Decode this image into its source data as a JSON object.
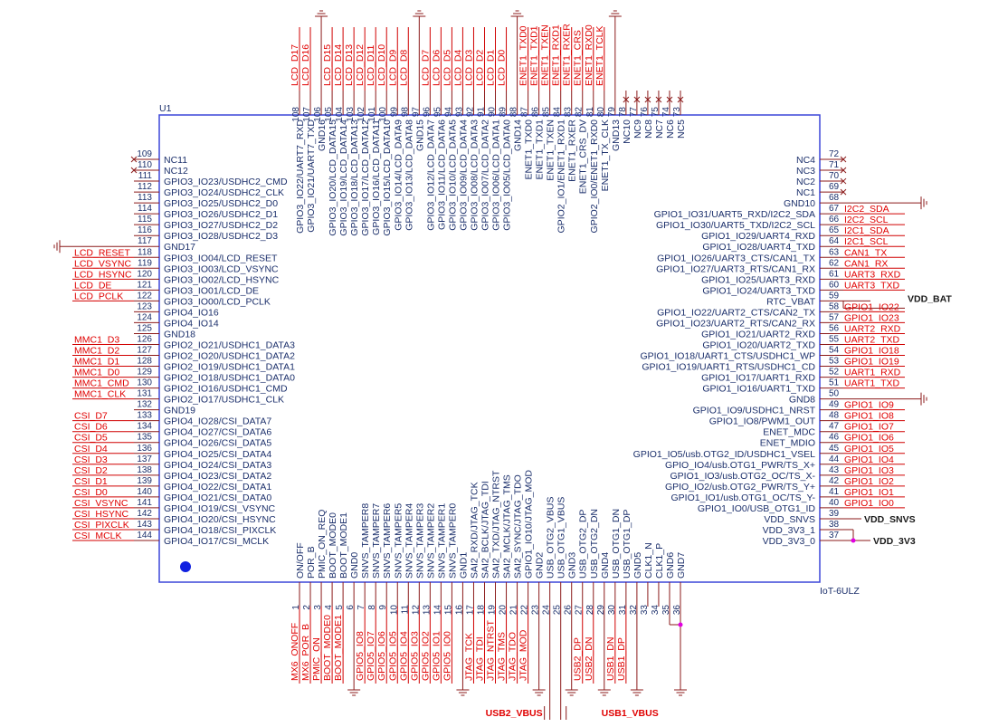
{
  "part": {
    "ref": "U1",
    "name": "IoT-6ULZ"
  },
  "left": [
    {
      "n": 109,
      "name": "NC11",
      "nc": true
    },
    {
      "n": 110,
      "name": "NC12",
      "nc": true
    },
    {
      "n": 111,
      "name": "GPIO3_IO23/USDHC2_CMD"
    },
    {
      "n": 112,
      "name": "GPIO3_IO24/USDHC2_CLK"
    },
    {
      "n": 113,
      "name": "GPIO3_IO25/USDHC2_D0"
    },
    {
      "n": 114,
      "name": "GPIO3_IO26/USDHC2_D1"
    },
    {
      "n": 115,
      "name": "GPIO3_IO27/USDHC2_D2"
    },
    {
      "n": 116,
      "name": "GPIO3_IO28/USDHC2_D3"
    },
    {
      "n": 117,
      "name": "GND17",
      "gnd": true
    },
    {
      "n": 118,
      "name": "GPIO3_IO04/LCD_RESET",
      "net": "LCD_RESET"
    },
    {
      "n": 119,
      "name": "GPIO3_IO03/LCD_VSYNC",
      "net": "LCD_VSYNC"
    },
    {
      "n": 120,
      "name": "GPIO3_IO02/LCD_HSYNC",
      "net": "LCD_HSYNC"
    },
    {
      "n": 121,
      "name": "GPIO3_IO01/LCD_DE",
      "net": "LCD_DE"
    },
    {
      "n": 122,
      "name": "GPIO3_IO00/LCD_PCLK",
      "net": "LCD_PCLK"
    },
    {
      "n": 123,
      "name": "GPIO4_IO16"
    },
    {
      "n": 124,
      "name": "GPIO4_IO14"
    },
    {
      "n": 125,
      "name": "GND18"
    },
    {
      "n": 126,
      "name": "GPIO2_IO21/USDHC1_DATA3",
      "net": "MMC1_D3"
    },
    {
      "n": 127,
      "name": "GPIO2_IO20/USDHC1_DATA2",
      "net": "MMC1_D2"
    },
    {
      "n": 128,
      "name": "GPIO2_IO19/USDHC1_DATA1",
      "net": "MMC1_D1"
    },
    {
      "n": 129,
      "name": "GPIO2_IO18/USDHC1_DATA0",
      "net": "MMC1_D0"
    },
    {
      "n": 130,
      "name": "GPIO2_IO16/USDHC1_CMD",
      "net": "MMC1_CMD"
    },
    {
      "n": 131,
      "name": "GPIO2_IO17/USDHC1_CLK",
      "net": "MMC1_CLK"
    },
    {
      "n": 132,
      "name": "GND19"
    },
    {
      "n": 133,
      "name": "GPIO4_IO28/CSI_DATA7",
      "net": "CSI_D7"
    },
    {
      "n": 134,
      "name": "GPIO4_IO27/CSI_DATA6",
      "net": "CSI_D6"
    },
    {
      "n": 135,
      "name": "GPIO4_IO26/CSI_DATA5",
      "net": "CSI_D5"
    },
    {
      "n": 136,
      "name": "GPIO4_IO25/CSI_DATA4",
      "net": "CSI_D4"
    },
    {
      "n": 137,
      "name": "GPIO4_IO24/CSI_DATA3",
      "net": "CSI_D3"
    },
    {
      "n": 138,
      "name": "GPIO4_IO23/CSI_DATA2",
      "net": "CSI_D2"
    },
    {
      "n": 139,
      "name": "GPIO4_IO22/CSI_DATA1",
      "net": "CSI_D1"
    },
    {
      "n": 140,
      "name": "GPIO4_IO21/CSI_DATA0",
      "net": "CSI_D0"
    },
    {
      "n": 141,
      "name": "GPIO4_IO19/CSI_VSYNC",
      "net": "CSI_VSYNC"
    },
    {
      "n": 142,
      "name": "GPIO4_IO20/CSI_HSYNC",
      "net": "CSI_HSYNC"
    },
    {
      "n": 143,
      "name": "GPIO4_IO18/CSI_PIXCLK",
      "net": "CSI_PIXCLK"
    },
    {
      "n": 144,
      "name": "GPIO4_IO17/CSI_MCLK",
      "net": "CSI_MCLK"
    }
  ],
  "top": [
    {
      "n": 108,
      "name": "GPIO3_IO22/UART7_RXD",
      "net": "LCD_D17"
    },
    {
      "n": 107,
      "name": "GPIO3_IO21/UART7_TXD",
      "net": "LCD_D16"
    },
    {
      "n": 106,
      "name": "GND16",
      "gnd": true
    },
    {
      "n": 105,
      "name": "GPIO3_IO20/LCD_DATA15",
      "net": "LCD_D15"
    },
    {
      "n": 104,
      "name": "GPIO3_IO19/LCD_DATA14",
      "net": "LCD_D14"
    },
    {
      "n": 103,
      "name": "GPIO3_IO18/LCD_DATA13",
      "net": "LCD_D13"
    },
    {
      "n": 102,
      "name": "GPIO3_IO17/LCD_DATA12",
      "net": "LCD_D12"
    },
    {
      "n": 101,
      "name": "GPIO3_IO16/LCD_DATA11",
      "net": "LCD_D11"
    },
    {
      "n": 100,
      "name": "GPIO3_IO15/LCD_DATA10",
      "net": "LCD_D10"
    },
    {
      "n": 99,
      "name": "GPIO3_IO14/LCD_DATA9",
      "net": "LCD_D9"
    },
    {
      "n": 98,
      "name": "GPIO3_IO13/LCD_DATA8",
      "net": "LCD_D8"
    },
    {
      "n": 97,
      "name": "GND15",
      "gnd": true
    },
    {
      "n": 96,
      "name": "GPIO3_IO12/LCD_DATA7",
      "net": "LCD_D7"
    },
    {
      "n": 95,
      "name": "GPIO3_IO11/LCD_DATA6",
      "net": "LCD_D6"
    },
    {
      "n": 94,
      "name": "GPIO3_IO10/LCD_DATA5",
      "net": "LCD_D5"
    },
    {
      "n": 93,
      "name": "GPIO3_IO09/LCD_DATA4",
      "net": "LCD_D4"
    },
    {
      "n": 92,
      "name": "GPIO3_IO08/LCD_DATA3",
      "net": "LCD_D3"
    },
    {
      "n": 91,
      "name": "GPIO3_IO07/LCD_DATA2",
      "net": "LCD_D2"
    },
    {
      "n": 90,
      "name": "GPIO3_IO06/LCD_DATA1",
      "net": "LCD_D1"
    },
    {
      "n": 89,
      "name": "GPIO3_IO05/LCD_DATA0",
      "net": "LCD_D0"
    },
    {
      "n": 88,
      "name": "GND14",
      "gnd": true
    },
    {
      "n": 87,
      "name": "ENET1_TXD0",
      "net": "ENET1_TXD0"
    },
    {
      "n": 86,
      "name": "ENET1_TXD1",
      "net": "ENET1_TXD1"
    },
    {
      "n": 85,
      "name": "ENET1_TXEN",
      "net": "ENET1_TXEN"
    },
    {
      "n": 84,
      "name": "GPIO2_IO1/ENET1_RXD1",
      "net": "ENET1_RXD1"
    },
    {
      "n": 83,
      "name": "ENET1_RXER",
      "net": "ENET1_RXER"
    },
    {
      "n": 82,
      "name": "ENET1_CRS_DV",
      "net": "ENET1_CRS"
    },
    {
      "n": 81,
      "name": "GPIO2_IO0/ENET1_RXD0",
      "net": "ENET1_RXD0"
    },
    {
      "n": 80,
      "name": "ENET1_TX_CLK",
      "net": "ENET1_TCLK"
    },
    {
      "n": 79,
      "name": "GND13",
      "gnd": true
    },
    {
      "n": 78,
      "name": "NC10",
      "nc": true
    },
    {
      "n": 77,
      "name": "NC9",
      "nc": true
    },
    {
      "n": 76,
      "name": "NC8",
      "nc": true
    },
    {
      "n": 75,
      "name": "NC7",
      "nc": true
    },
    {
      "n": 74,
      "name": "NC6",
      "nc": true
    },
    {
      "n": 73,
      "name": "NC5",
      "nc": true
    }
  ],
  "right": [
    {
      "n": 72,
      "name": "NC4",
      "nc": true
    },
    {
      "n": 71,
      "name": "NC3",
      "nc": true
    },
    {
      "n": 70,
      "name": "NC2",
      "nc": true
    },
    {
      "n": 69,
      "name": "NC1",
      "nc": true
    },
    {
      "n": 68,
      "name": "GND10",
      "gnd": true
    },
    {
      "n": 67,
      "name": "GPIO1_IO31/UART5_RXD/I2C2_SDA",
      "net": "I2C2_SDA"
    },
    {
      "n": 66,
      "name": "GPIO1_IO30/UART5_TXD/I2C2_SCL",
      "net": "I2C2_SCL"
    },
    {
      "n": 65,
      "name": "GPIO1_IO29/UART4_RXD",
      "net": "I2C1_SDA"
    },
    {
      "n": 64,
      "name": "GPIO1_IO28/UART4_TXD",
      "net": "I2C1_SCL"
    },
    {
      "n": 63,
      "name": "GPIO1_IO26/UART3_CTS/CAN1_TX",
      "net": "CAN1_TX"
    },
    {
      "n": 62,
      "name": "GPIO1_IO27/UART3_RTS/CAN1_RX",
      "net": "CAN1_RX"
    },
    {
      "n": 61,
      "name": "GPIO1_IO25/UART3_RXD",
      "net": "UART3_RXD"
    },
    {
      "n": 60,
      "name": "GPIO1_IO24/UART3_TXD",
      "net": "UART3_TXD"
    },
    {
      "n": 59,
      "name": "RTC_VBAT",
      "net": "VDD_BAT",
      "power": true
    },
    {
      "n": 58,
      "name": "GPIO1_IO22/UART2_CTS/CAN2_TX",
      "net": "GPIO1_IO22"
    },
    {
      "n": 57,
      "name": "GPIO1_IO23/UART2_RTS/CAN2_RX",
      "net": "GPIO1_IO23"
    },
    {
      "n": 56,
      "name": "GPIO1_IO21/UART2_RXD",
      "net": "UART2_RXD"
    },
    {
      "n": 55,
      "name": "GPIO1_IO20/UART2_TXD",
      "net": "UART2_TXD"
    },
    {
      "n": 54,
      "name": "GPIO1_IO18/UART1_CTS/USDHC1_WP",
      "net": "GPIO1_IO18"
    },
    {
      "n": 53,
      "name": "GPIO1_IO19/UART1_RTS/USDHC1_CD",
      "net": "GPIO1_IO19"
    },
    {
      "n": 52,
      "name": "GPIO1_IO17/UART1_RXD",
      "net": "UART1_RXD"
    },
    {
      "n": 51,
      "name": "GPIO1_IO16/UART1_TXD",
      "net": "UART1_TXD"
    },
    {
      "n": 50,
      "name": "GND8",
      "gnd": true
    },
    {
      "n": 49,
      "name": "GPIO1_IO9/USDHC1_NRST",
      "net": "GPIO1_IO9"
    },
    {
      "n": 48,
      "name": "GPIO1_IO8/PWM1_OUT",
      "net": "GPIO1_IO8"
    },
    {
      "n": 47,
      "name": "ENET_MDC",
      "net": "GPIO1_IO7"
    },
    {
      "n": 46,
      "name": "ENET_MDIO",
      "net": "GPIO1_IO6"
    },
    {
      "n": 45,
      "name": "GPIO1_IO5/usb.OTG2_ID/USDHC1_VSEL",
      "net": "GPIO1_IO5"
    },
    {
      "n": 44,
      "name": "GPIO_IO4/usb.OTG1_PWR/TS_X+",
      "net": "GPIO1_IO4"
    },
    {
      "n": 43,
      "name": "GPIO1_IO3/usb.OTG2_OC/TS_X-",
      "net": "GPIO1_IO3"
    },
    {
      "n": 42,
      "name": "GPIO_IO2/usb.OTG2_PWR/TS_Y+",
      "net": "GPIO1_IO2"
    },
    {
      "n": 41,
      "name": "GPIO1_IO1/usb.OTG1_OC/TS_Y-",
      "net": "GPIO1_IO1"
    },
    {
      "n": 40,
      "name": "GPIO1_IO0/USB_OTG1_ID",
      "net": "GPIO1_IO0"
    },
    {
      "n": 39,
      "name": "VDD_SNVS",
      "net": "VDD_SNVS",
      "power": true
    },
    {
      "n": 38,
      "name": "VDD_3V3_1"
    },
    {
      "n": 37,
      "name": "VDD_3V3_0",
      "net": "VDD_3V3",
      "power": true
    }
  ],
  "bottom": [
    {
      "n": 1,
      "name": "ON/OFF",
      "net": "MX6_ONOFF"
    },
    {
      "n": 2,
      "name": "POR_B",
      "net": "MX6_POR_B"
    },
    {
      "n": 3,
      "name": "PMIC_ON_REQ",
      "net": "PMIC_ON"
    },
    {
      "n": 4,
      "name": "BOOT_MODE0",
      "net": "BOOT_MODE0"
    },
    {
      "n": 5,
      "name": "BOOT_MODE1",
      "net": "BOOT_MODE1"
    },
    {
      "n": 6,
      "name": "GND0",
      "gnd": true
    },
    {
      "n": 7,
      "name": "SNVS_TAMPER8",
      "net": "GPIO5_IO8"
    },
    {
      "n": 8,
      "name": "SNVS_TAMPER7",
      "net": "GPIO5_IO7"
    },
    {
      "n": 9,
      "name": "SNVS_TAMPER6",
      "net": "GPIO5_IO6"
    },
    {
      "n": 10,
      "name": "SNVS_TAMPER5",
      "net": "GPIO5_IO5"
    },
    {
      "n": 11,
      "name": "SNVS_TAMPER4",
      "net": "GPIO5_IO4"
    },
    {
      "n": 12,
      "name": "SNVS_TAMPER3",
      "net": "GPIO5_IO3"
    },
    {
      "n": 13,
      "name": "SNVS_TAMPER2",
      "net": "GPIO5_IO2"
    },
    {
      "n": 14,
      "name": "SNVS_TAMPER1",
      "net": "GPIO5_IO1"
    },
    {
      "n": 15,
      "name": "SNVS_TAMPER0",
      "net": "GPIO5_IO0"
    },
    {
      "n": 16,
      "name": "GND1",
      "gnd": true
    },
    {
      "n": 17,
      "name": "SAI2_RXD/JTAG_TCK",
      "net": "JTAG_TCK"
    },
    {
      "n": 18,
      "name": "SAI2_BCLK/JTAG_TDI",
      "net": "JTAG_TDI"
    },
    {
      "n": 19,
      "name": "SAI2_TXD/JTAG_NTRST",
      "net": "JTAG_NTRST"
    },
    {
      "n": 20,
      "name": "SAI2_MCLK/JTAG_TMS",
      "net": "JTAG_TMS"
    },
    {
      "n": 21,
      "name": "SAI2_SYNC/JTAG_TDO",
      "net": "JTAG_TDO"
    },
    {
      "n": 22,
      "name": "GPIO1_IO10/JTAG_MOD",
      "net": "JTAG_MOD"
    },
    {
      "n": 23,
      "name": "GND2",
      "gnd": true
    },
    {
      "n": 24,
      "name": "USB_OTG2_VBUS",
      "net": "USB2_VBUS",
      "power": true
    },
    {
      "n": 25,
      "name": "USB_OTG1_VBUS",
      "net": "USB1_VBUS",
      "power": true
    },
    {
      "n": 26,
      "name": "GND3",
      "gnd": true
    },
    {
      "n": 27,
      "name": "USB_OTG2_DP",
      "net": "USB2_DP"
    },
    {
      "n": 28,
      "name": "USB_OTG2_DN",
      "net": "USB2_DN"
    },
    {
      "n": 29,
      "name": "GND4",
      "gnd": true
    },
    {
      "n": 30,
      "name": "USB_OTG1_DN",
      "net": "USB1_DN"
    },
    {
      "n": 31,
      "name": "USB_OTG1_DP",
      "net": "USB1_DP"
    },
    {
      "n": 32,
      "name": "GND5",
      "gnd": true
    },
    {
      "n": 33,
      "name": "CLK1_N"
    },
    {
      "n": 34,
      "name": "CLK1_P"
    },
    {
      "n": 35,
      "name": "GND6"
    },
    {
      "n": 36,
      "name": "GND7",
      "gnd": true
    }
  ]
}
